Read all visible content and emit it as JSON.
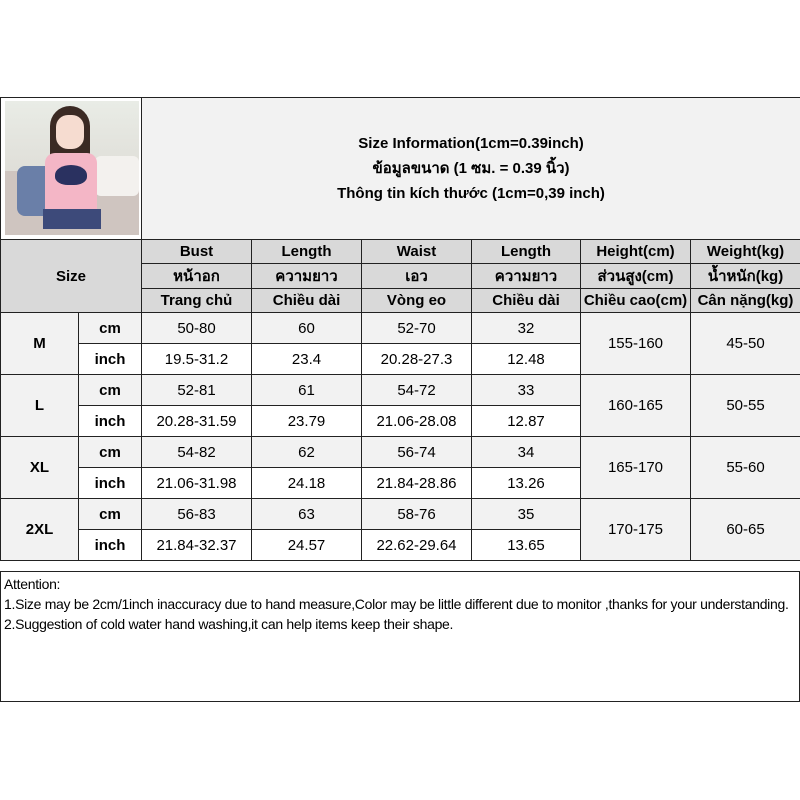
{
  "title_lines": [
    "Size Information(1cm=0.39inch)",
    "ข้อมูลขนาด (1 ซม. = 0.39 นิ้ว)",
    "Thông tin kích thước (1cm=0,39 inch)"
  ],
  "size_label": "Size",
  "columns": [
    {
      "en": "Bust",
      "th": "หน้าอก",
      "vi": "Trang chủ"
    },
    {
      "en": "Length",
      "th": "ความยาว",
      "vi": "Chiều dài"
    },
    {
      "en": "Waist",
      "th": "เอว",
      "vi": "Vòng eo"
    },
    {
      "en": "Length",
      "th": "ความยาว",
      "vi": "Chiều dài"
    },
    {
      "en": "Height(cm)",
      "th": "ส่วนสูง(cm)",
      "vi": "Chiều cao(cm)"
    },
    {
      "en": "Weight(kg)",
      "th": "น้ำหนัก(kg)",
      "vi": "Cân nặng(kg)"
    }
  ],
  "units": [
    "cm",
    "inch"
  ],
  "rows": [
    {
      "size": "M",
      "cm": [
        "50-80",
        "60",
        "52-70",
        "32"
      ],
      "inch": [
        "19.5-31.2",
        "23.4",
        "20.28-27.3",
        "12.48"
      ],
      "height": "155-160",
      "weight": "45-50"
    },
    {
      "size": "L",
      "cm": [
        "52-81",
        "61",
        "54-72",
        "33"
      ],
      "inch": [
        "20.28-31.59",
        "23.79",
        "21.06-28.08",
        "12.87"
      ],
      "height": "160-165",
      "weight": "50-55"
    },
    {
      "size": "XL",
      "cm": [
        "54-82",
        "62",
        "56-74",
        "34"
      ],
      "inch": [
        "21.06-31.98",
        "24.18",
        "21.84-28.86",
        "13.26"
      ],
      "height": "165-170",
      "weight": "55-60"
    },
    {
      "size": "2XL",
      "cm": [
        "56-83",
        "63",
        "58-76",
        "35"
      ],
      "inch": [
        "21.84-32.37",
        "24.57",
        "22.62-29.64",
        "13.65"
      ],
      "height": "170-175",
      "weight": "60-65"
    }
  ],
  "attention": {
    "heading": "Attention:",
    "lines": [
      "1.Size may be 2cm/1inch inaccuracy due to hand measure,Color may be little different due to monitor ,thanks for your understanding.",
      "2.Suggestion of cold water hand washing,it can help items keep their shape."
    ]
  },
  "colors": {
    "header_gray": "#d9d9d9",
    "light_gray": "#f2f2f2",
    "border": "#222222",
    "shirt_pink": "#f4b6c6",
    "navy": "#2a3160"
  }
}
